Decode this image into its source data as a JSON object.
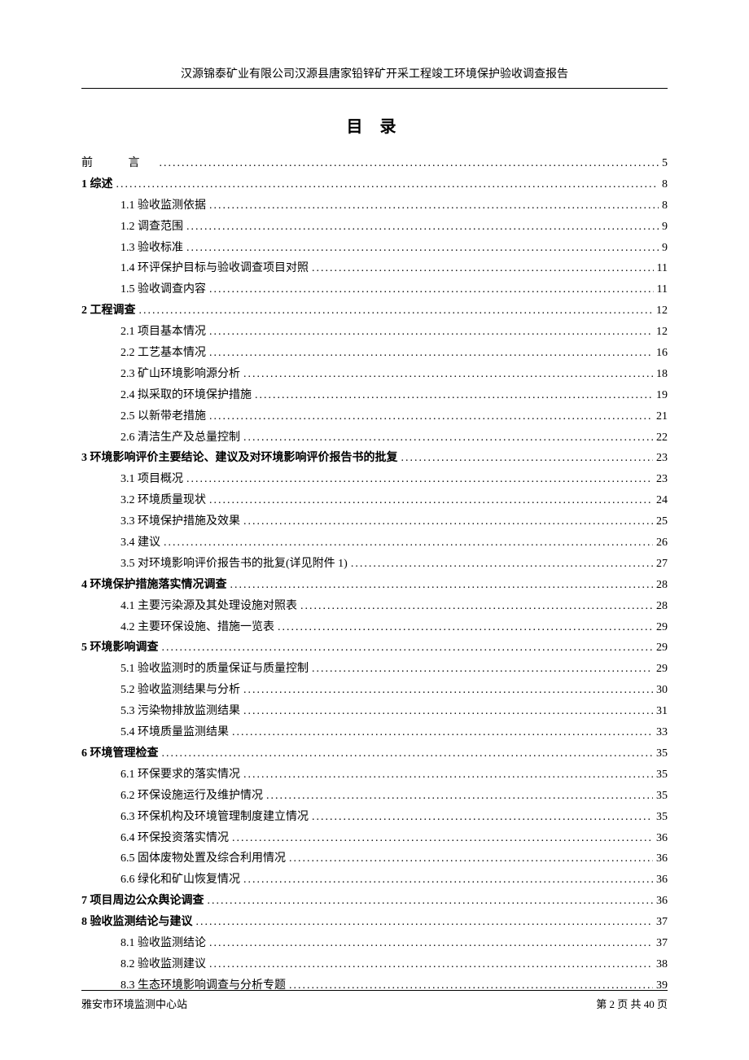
{
  "header": "汉源锦泰矿业有限公司汉源县唐家铅锌矿开采工程竣工环境保护验收调查报告",
  "title": "目  录",
  "footer_left": "雅安市环境监测中心站",
  "footer_right": "第 2 页 共 40 页",
  "toc": [
    {
      "level": 0,
      "label": "前    言",
      "page": "5",
      "preface": true
    },
    {
      "level": 1,
      "label": "1 综述",
      "page": "8"
    },
    {
      "level": 2,
      "label": "1.1  验收监测依据",
      "page": "8"
    },
    {
      "level": 2,
      "label": "1.2  调查范围",
      "page": "9"
    },
    {
      "level": 2,
      "label": "1.3  验收标准",
      "page": "9"
    },
    {
      "level": 2,
      "label": "1.4 环评保护目标与验收调查项目对照",
      "page": "11"
    },
    {
      "level": 2,
      "label": "1.5  验收调查内容",
      "page": "11"
    },
    {
      "level": 1,
      "label": "2 工程调查",
      "page": "12"
    },
    {
      "level": 2,
      "label": "2.1 项目基本情况",
      "page": "12"
    },
    {
      "level": 2,
      "label": "2.2 工艺基本情况",
      "page": "16"
    },
    {
      "level": 2,
      "label": "2.3 矿山环境影响源分析",
      "page": "18"
    },
    {
      "level": 2,
      "label": "2.4  拟采取的环境保护措施",
      "page": "19"
    },
    {
      "level": 2,
      "label": "2.5 以新带老措施",
      "page": "21"
    },
    {
      "level": 2,
      "label": "2.6  清洁生产及总量控制",
      "page": "22"
    },
    {
      "level": 1,
      "label": "3 环境影响评价主要结论、建议及对环境影响评价报告书的批复",
      "page": "23"
    },
    {
      "level": 2,
      "label": "3.1  项目概况",
      "page": "23"
    },
    {
      "level": 2,
      "label": "3.2  环境质量现状",
      "page": "24"
    },
    {
      "level": 2,
      "label": "3.3 环境保护措施及效果",
      "page": "25"
    },
    {
      "level": 2,
      "label": "3.4 建议",
      "page": "26"
    },
    {
      "level": 2,
      "label": "3.5 对环境影响评价报告书的批复(详见附件 1)",
      "page": "27"
    },
    {
      "level": 1,
      "label": "4 环境保护措施落实情况调查",
      "page": "28"
    },
    {
      "level": 2,
      "label": "4.1  主要污染源及其处理设施对照表",
      "page": "28"
    },
    {
      "level": 2,
      "label": "4.2 主要环保设施、措施一览表",
      "page": "29"
    },
    {
      "level": 1,
      "label": "5 环境影响调查",
      "page": "29"
    },
    {
      "level": 2,
      "label": "5.1  验收监测时的质量保证与质量控制",
      "page": "29"
    },
    {
      "level": 2,
      "label": "5.2    验收监测结果与分析",
      "page": "30"
    },
    {
      "level": 2,
      "label": "5.3    污染物排放监测结果",
      "page": "31"
    },
    {
      "level": 2,
      "label": "5.4    环境质量监测结果",
      "page": "33"
    },
    {
      "level": 1,
      "label": "6 环境管理检查",
      "page": "35"
    },
    {
      "level": 2,
      "label": "6.1  环保要求的落实情况",
      "page": "35"
    },
    {
      "level": 2,
      "label": "6.2    环保设施运行及维护情况",
      "page": "35"
    },
    {
      "level": 2,
      "label": "6.3    环保机构及环境管理制度建立情况",
      "page": "35"
    },
    {
      "level": 2,
      "label": "6.4    环保投资落实情况",
      "page": "36"
    },
    {
      "level": 2,
      "label": "6.5    固体废物处置及综合利用情况",
      "page": "36"
    },
    {
      "level": 2,
      "label": "6.6    绿化和矿山恢复情况",
      "page": "36"
    },
    {
      "level": 1,
      "label": "7 项目周边公众舆论调查",
      "page": "36"
    },
    {
      "level": 1,
      "label": "8 验收监测结论与建议",
      "page": "37"
    },
    {
      "level": 2,
      "label": "8.1    验收监测结论",
      "page": "37"
    },
    {
      "level": 2,
      "label": "8.2    验收监测建议",
      "page": "38"
    },
    {
      "level": 2,
      "label": "8.3    生态环境影响调查与分析专题",
      "page": "39"
    }
  ]
}
